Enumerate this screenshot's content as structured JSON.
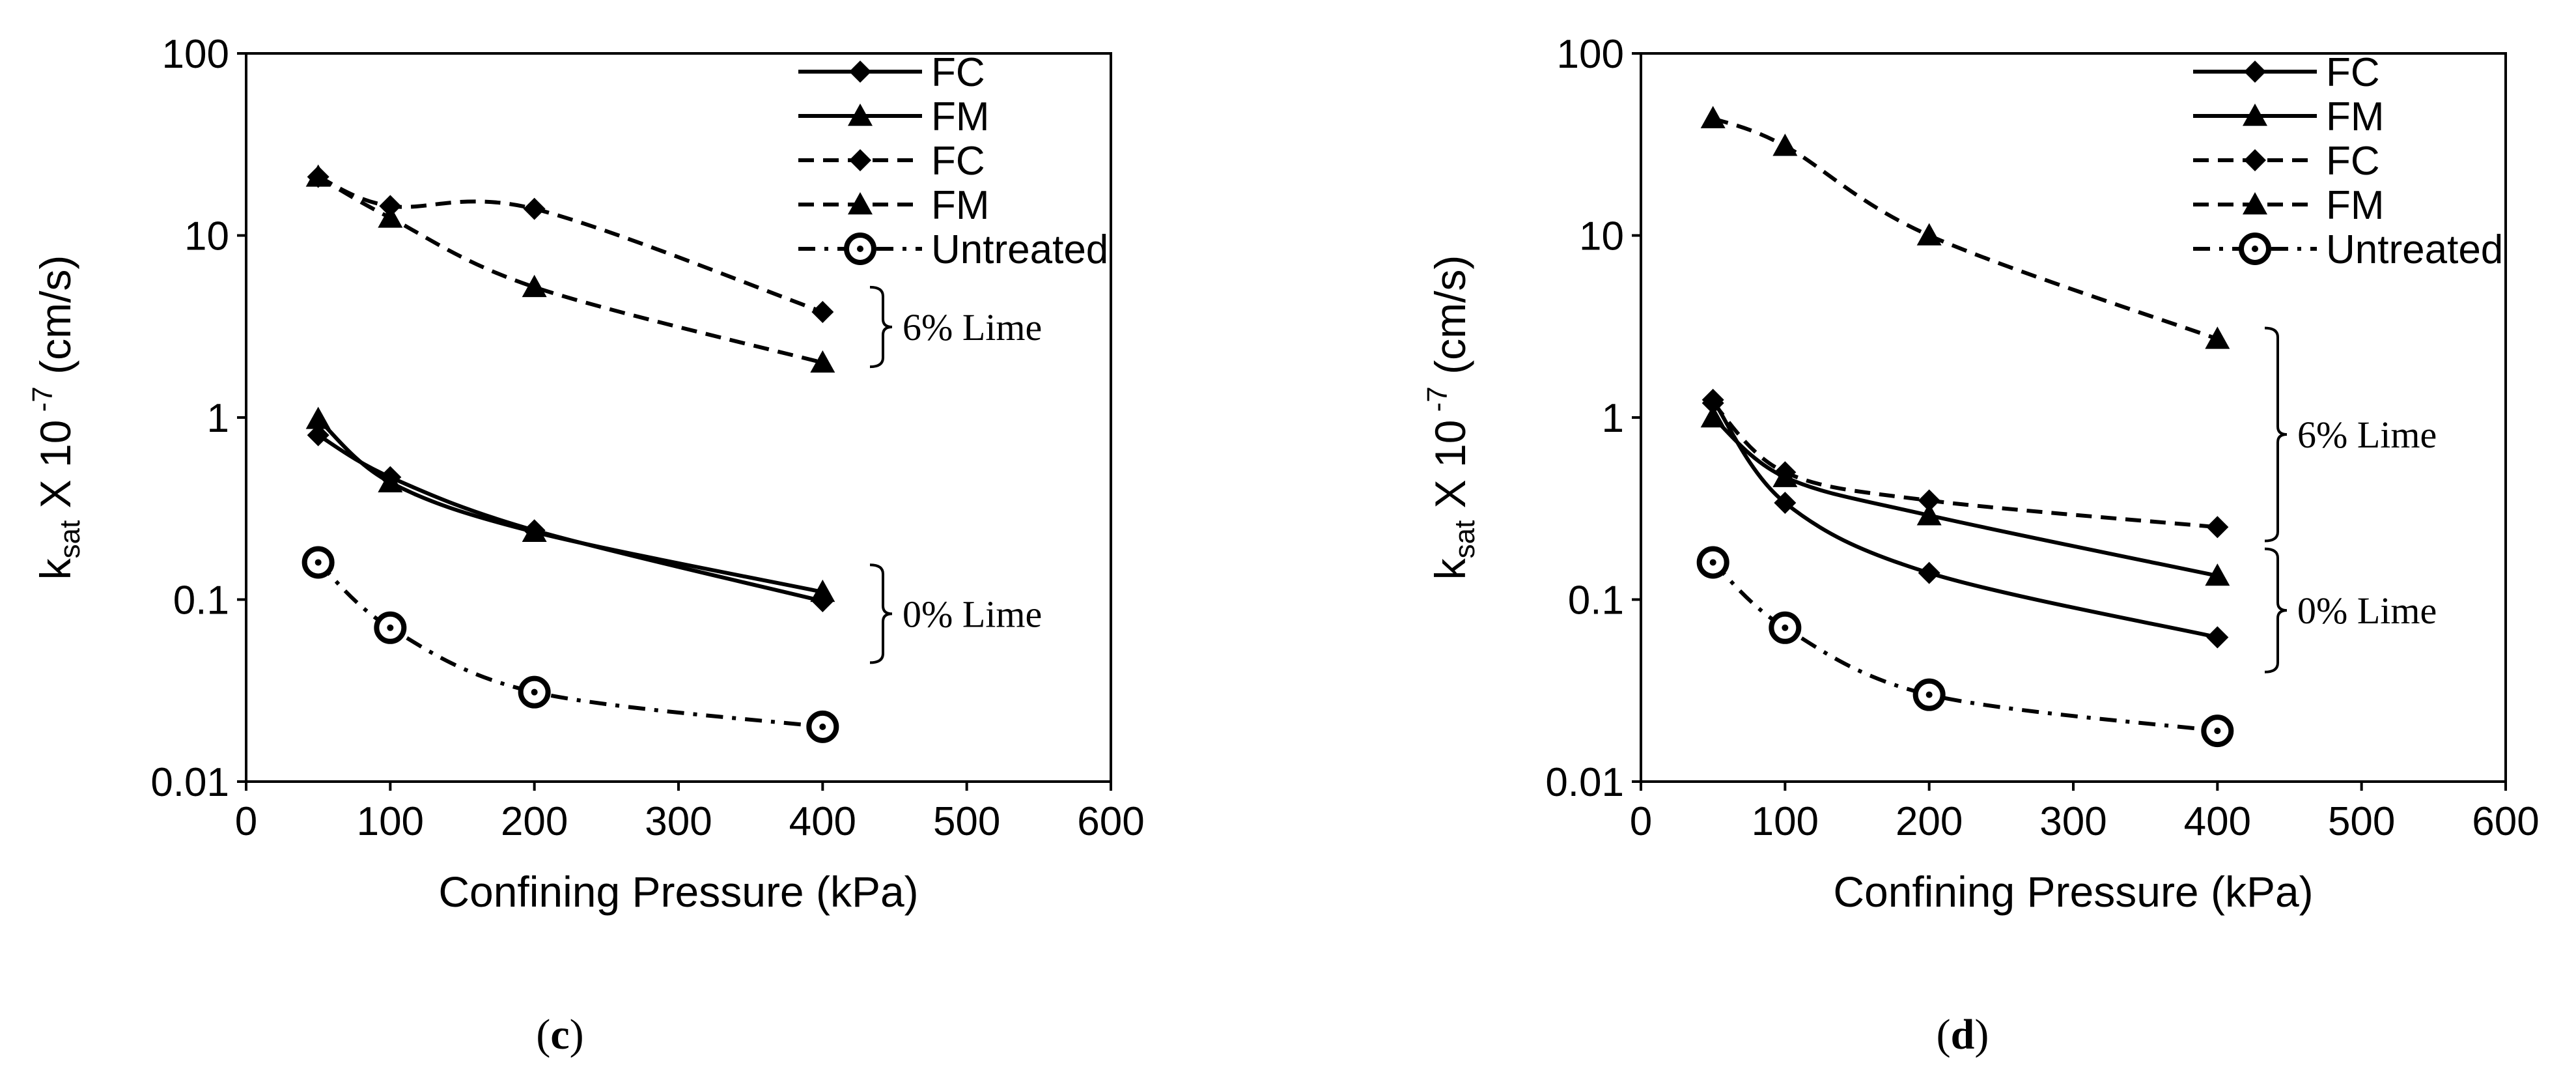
{
  "chart_data": [
    {
      "type": "line",
      "panel_label": "(c)",
      "xlabel": "Confining Pressure (kPa)",
      "ylabel": "k",
      "ylabel_sub": "sat",
      "ylabel_rest": " X 10",
      "ylabel_sup": " -7",
      "ylabel_unit": " (cm/s)",
      "xlim": [
        0,
        600
      ],
      "ylim": [
        0.01,
        100
      ],
      "yscale": "log",
      "x_ticks": [
        "0",
        "100",
        "200",
        "300",
        "400",
        "500",
        "600"
      ],
      "y_ticks": [
        "0.01",
        "0.1",
        "1",
        "10",
        "100"
      ],
      "legend_position": "top-right",
      "series": [
        {
          "name": "FC",
          "style": "solid",
          "marker": "diamond",
          "x": [
            50,
            100,
            200,
            400
          ],
          "values": [
            0.8,
            0.47,
            0.24,
            0.098
          ]
        },
        {
          "name": "FM",
          "style": "solid",
          "marker": "triangle",
          "x": [
            50,
            100,
            200,
            400
          ],
          "values": [
            0.98,
            0.44,
            0.235,
            0.11
          ]
        },
        {
          "name": "FC",
          "style": "dashed",
          "marker": "diamond",
          "x": [
            50,
            100,
            200,
            400
          ],
          "values": [
            21,
            14.5,
            14,
            3.8
          ]
        },
        {
          "name": "FM",
          "style": "dashed",
          "marker": "triangle",
          "x": [
            50,
            100,
            200,
            400
          ],
          "values": [
            21,
            12.5,
            5.2,
            2
          ]
        },
        {
          "name": "Untreated",
          "style": "dashdot",
          "marker": "circle",
          "x": [
            50,
            100,
            200,
            400
          ],
          "values": [
            0.16,
            0.07,
            0.031,
            0.02
          ]
        }
      ],
      "annotations": [
        {
          "text": "6% Lime",
          "y_range": [
            1.9,
            5.2
          ]
        },
        {
          "text": "0% Lime",
          "y_range": [
            0.045,
            0.155
          ]
        }
      ]
    },
    {
      "type": "line",
      "panel_label": "(d)",
      "xlabel": "Confining Pressure (kPa)",
      "ylabel": "k",
      "ylabel_sub": "sat",
      "ylabel_rest": " X 10",
      "ylabel_sup": " -7",
      "ylabel_unit": " (cm/s)",
      "xlim": [
        0,
        600
      ],
      "ylim": [
        0.01,
        100
      ],
      "yscale": "log",
      "x_ticks": [
        "0",
        "100",
        "200",
        "300",
        "400",
        "500",
        "600"
      ],
      "y_ticks": [
        "0.01",
        "0.1",
        "1",
        "10",
        "100"
      ],
      "legend_position": "top-right",
      "series": [
        {
          "name": "FC",
          "style": "solid",
          "marker": "diamond",
          "x": [
            50,
            100,
            200,
            400
          ],
          "values": [
            1.25,
            0.34,
            0.14,
            0.062
          ]
        },
        {
          "name": "FM",
          "style": "solid",
          "marker": "triangle",
          "x": [
            50,
            100,
            200,
            400
          ],
          "values": [
            1.0,
            0.47,
            0.29,
            0.135
          ]
        },
        {
          "name": "FC",
          "style": "dashed",
          "marker": "diamond",
          "x": [
            50,
            100,
            200,
            400
          ],
          "values": [
            1.2,
            0.5,
            0.35,
            0.25
          ]
        },
        {
          "name": "FM",
          "style": "dashed",
          "marker": "triangle",
          "x": [
            50,
            100,
            200,
            400
          ],
          "values": [
            44,
            31,
            10,
            2.7
          ]
        },
        {
          "name": "Untreated",
          "style": "dashdot",
          "marker": "circle",
          "x": [
            50,
            100,
            200,
            400
          ],
          "values": [
            0.16,
            0.07,
            0.03,
            0.019
          ]
        }
      ],
      "annotations": [
        {
          "text": "6% Lime",
          "y_range": [
            0.21,
            3.1
          ]
        },
        {
          "text": "0% Lime",
          "y_range": [
            0.04,
            0.19
          ]
        }
      ]
    }
  ]
}
